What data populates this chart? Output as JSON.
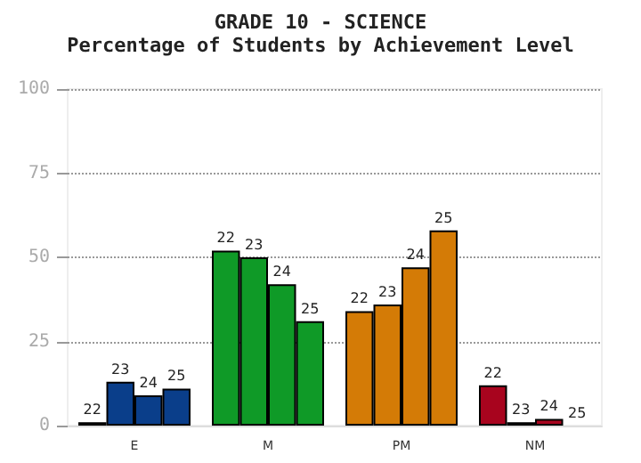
{
  "chart_data": {
    "type": "bar",
    "title": "GRADE 10 - SCIENCE",
    "subtitle": "Percentage of Students by Achievement Level",
    "categories": [
      "E",
      "M",
      "PM",
      "NM"
    ],
    "series": [
      {
        "name": "22",
        "colors": [
          "#0a3e8a",
          "#0f9a27",
          "#d47b06",
          "#a8041e"
        ],
        "values": [
          1,
          52,
          34,
          12
        ]
      },
      {
        "name": "23",
        "colors": [
          "#0a3e8a",
          "#0f9a27",
          "#d47b06",
          "#a8041e"
        ],
        "values": [
          13,
          50,
          36,
          1
        ]
      },
      {
        "name": "24",
        "colors": [
          "#0a3e8a",
          "#0f9a27",
          "#d47b06",
          "#a8041e"
        ],
        "values": [
          9,
          42,
          47,
          2
        ]
      },
      {
        "name": "25",
        "colors": [
          "#0a3e8a",
          "#0f9a27",
          "#d47b06",
          "#a8041e"
        ],
        "values": [
          11,
          31,
          58,
          0
        ]
      }
    ],
    "ylim": [
      0,
      100
    ],
    "yticks": [
      0,
      25,
      50,
      75,
      100
    ],
    "grid": "y",
    "legend": false
  }
}
